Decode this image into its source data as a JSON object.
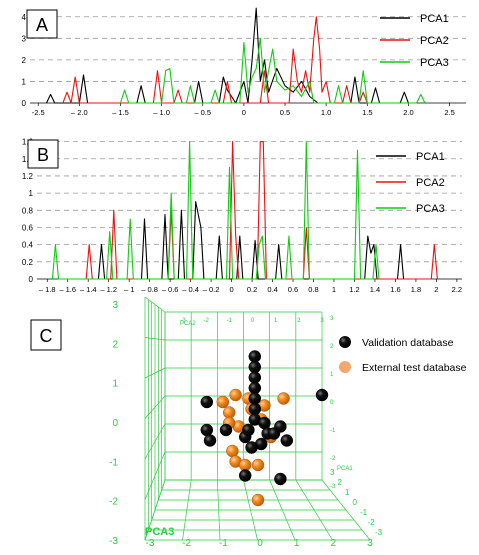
{
  "panel_labels": {
    "a": "A",
    "b": "B",
    "c": "C"
  },
  "legend_ab": [
    {
      "name": "PCA1",
      "color": "#000000"
    },
    {
      "name": "PCA2",
      "color": "#ee1111"
    },
    {
      "name": "PCA3",
      "color": "#11cc11"
    }
  ],
  "legend_c": [
    {
      "name": "Validation database",
      "color": "#000000"
    },
    {
      "name": "External test database",
      "color": "#f4a870"
    }
  ],
  "chart_data": [
    {
      "type": "line",
      "panel": "A",
      "ylim": [
        0,
        4.5
      ],
      "xlim": [
        -2.6,
        2.7
      ],
      "y_ticks": [
        0,
        1,
        2,
        3,
        4
      ],
      "x_ticks": [
        -2.5,
        -2.0,
        -1.5,
        -1.0,
        -0.5,
        0,
        0.5,
        1.0,
        1.5,
        2.0,
        2.5
      ],
      "x_tick_labels": [
        "-2.5",
        "– 2.0",
        "– 1.5",
        "– 1.0",
        "– 0.5",
        "0",
        "0.5",
        "1.0",
        "1.5",
        "2.0",
        "2.5"
      ],
      "grid": "y-dashed",
      "legend": "top-right",
      "series": [
        {
          "name": "PCA1",
          "color": "#000000",
          "points": [
            [
              -2.4,
              0
            ],
            [
              -2.35,
              0.4
            ],
            [
              -2.3,
              0
            ],
            [
              -2.0,
              0
            ],
            [
              -1.95,
              1.3
            ],
            [
              -1.9,
              0
            ],
            [
              -1.3,
              0
            ],
            [
              -1.25,
              0.8
            ],
            [
              -1.2,
              0
            ],
            [
              -0.6,
              0
            ],
            [
              -0.55,
              1.0
            ],
            [
              -0.5,
              0
            ],
            [
              -0.3,
              0
            ],
            [
              -0.25,
              1.2
            ],
            [
              -0.2,
              0.6
            ],
            [
              -0.1,
              0
            ],
            [
              0.0,
              1.0
            ],
            [
              0.05,
              0
            ],
            [
              0.1,
              2.0
            ],
            [
              0.15,
              4.4
            ],
            [
              0.2,
              1.0
            ],
            [
              0.25,
              2.0
            ],
            [
              0.3,
              0.5
            ],
            [
              0.4,
              1.6
            ],
            [
              0.5,
              0.8
            ],
            [
              0.6,
              0.5
            ],
            [
              0.7,
              1.0
            ],
            [
              0.8,
              0.3
            ],
            [
              0.9,
              0
            ],
            [
              1.3,
              0
            ],
            [
              1.35,
              1.2
            ],
            [
              1.4,
              0
            ],
            [
              1.55,
              0
            ],
            [
              1.6,
              0.7
            ],
            [
              1.65,
              0
            ],
            [
              1.9,
              0
            ],
            [
              1.95,
              0.5
            ],
            [
              2.0,
              0
            ]
          ]
        },
        {
          "name": "PCA2",
          "color": "#ee1111",
          "points": [
            [
              -2.2,
              0
            ],
            [
              -2.15,
              0.5
            ],
            [
              -2.1,
              0
            ],
            [
              -2.05,
              1.2
            ],
            [
              -2.0,
              0
            ],
            [
              -1.1,
              0
            ],
            [
              -1.05,
              1.5
            ],
            [
              -1.0,
              0
            ],
            [
              -0.85,
              0
            ],
            [
              -0.8,
              0.6
            ],
            [
              -0.75,
              0
            ],
            [
              -0.25,
              0
            ],
            [
              -0.2,
              1.0
            ],
            [
              -0.15,
              0
            ],
            [
              0.2,
              0
            ],
            [
              0.25,
              1.5
            ],
            [
              0.3,
              0
            ],
            [
              0.55,
              0
            ],
            [
              0.6,
              2.5
            ],
            [
              0.65,
              1.0
            ],
            [
              0.7,
              0.5
            ],
            [
              0.75,
              1.5
            ],
            [
              0.8,
              0.5
            ],
            [
              0.85,
              3.0
            ],
            [
              0.88,
              4.0
            ],
            [
              0.92,
              2.5
            ],
            [
              0.95,
              0.5
            ],
            [
              1.0,
              1.0
            ],
            [
              1.05,
              0
            ],
            [
              1.2,
              0
            ],
            [
              1.25,
              0.8
            ],
            [
              1.3,
              0
            ],
            [
              1.4,
              0
            ],
            [
              1.45,
              0.5
            ],
            [
              1.5,
              0
            ]
          ]
        },
        {
          "name": "PCA3",
          "color": "#11cc11",
          "points": [
            [
              -1.5,
              0
            ],
            [
              -1.45,
              0.6
            ],
            [
              -1.4,
              0
            ],
            [
              -1.0,
              0
            ],
            [
              -0.95,
              1.5
            ],
            [
              -0.9,
              1.6
            ],
            [
              -0.85,
              0
            ],
            [
              -0.7,
              0
            ],
            [
              -0.65,
              0.8
            ],
            [
              -0.6,
              0
            ],
            [
              -0.4,
              0
            ],
            [
              -0.35,
              0.6
            ],
            [
              -0.3,
              0
            ],
            [
              -0.05,
              0
            ],
            [
              0.0,
              2.8
            ],
            [
              0.05,
              0.5
            ],
            [
              0.1,
              1.2
            ],
            [
              0.15,
              1.6
            ],
            [
              0.2,
              3.0
            ],
            [
              0.25,
              0.5
            ],
            [
              0.35,
              2.5
            ],
            [
              0.4,
              1.0
            ],
            [
              0.5,
              0.6
            ],
            [
              0.6,
              0.8
            ],
            [
              0.7,
              0.3
            ],
            [
              0.8,
              1.0
            ],
            [
              0.85,
              0
            ],
            [
              1.1,
              0
            ],
            [
              1.15,
              0.8
            ],
            [
              1.2,
              0
            ],
            [
              1.4,
              0
            ],
            [
              1.45,
              1.5
            ],
            [
              1.5,
              0
            ],
            [
              2.1,
              0
            ],
            [
              2.15,
              0.4
            ],
            [
              2.2,
              0
            ]
          ]
        }
      ]
    },
    {
      "type": "line",
      "panel": "B",
      "ylim": [
        0,
        1.7
      ],
      "xlim": [
        -1.9,
        2.25
      ],
      "y_ticks": [
        0,
        0.2,
        0.4,
        0.6,
        0.8,
        1.0,
        1.2,
        1.4,
        1.6
      ],
      "y_tick_labels": [
        "0",
        "0.2",
        "0.4",
        "0.6",
        "0.8",
        "1",
        "1.2",
        "1.4",
        "1.6"
      ],
      "x_ticks": [
        -1.8,
        -1.6,
        -1.4,
        -1.2,
        -1.0,
        -0.8,
        -0.6,
        -0.4,
        -0.2,
        0,
        0.2,
        0.4,
        0.6,
        0.8,
        1.0,
        1.2,
        1.4,
        1.6,
        1.8,
        2.0,
        2.2
      ],
      "x_tick_labels": [
        "– 1.8",
        "– 1.6",
        "– 1.4",
        "– 1.2",
        "– 1",
        "– 0.8",
        "– 0.6",
        "– 0.4",
        "– 0.2",
        "0",
        "0.2",
        "0.4",
        "0.6",
        "0.8",
        "1",
        "1.2",
        "1.4",
        "1.6",
        "1.8",
        "2",
        "2.2"
      ],
      "grid": "y-dashed",
      "legend": "top-right",
      "series": [
        {
          "name": "PCA1",
          "color": "#000000",
          "points": [
            [
              -1.3,
              0
            ],
            [
              -1.27,
              0.4
            ],
            [
              -1.24,
              0
            ],
            [
              -0.88,
              0
            ],
            [
              -0.85,
              0.7
            ],
            [
              -0.82,
              0
            ],
            [
              -0.68,
              0
            ],
            [
              -0.65,
              0.75
            ],
            [
              -0.62,
              0
            ],
            [
              -0.52,
              0
            ],
            [
              -0.49,
              0.8
            ],
            [
              -0.46,
              0
            ],
            [
              -0.38,
              0
            ],
            [
              -0.35,
              0.9
            ],
            [
              -0.3,
              0.6
            ],
            [
              -0.27,
              0
            ],
            [
              -0.15,
              0
            ],
            [
              -0.12,
              0.5
            ],
            [
              -0.09,
              0
            ],
            [
              0.05,
              0
            ],
            [
              0.08,
              0.5
            ],
            [
              0.11,
              0
            ],
            [
              0.2,
              0
            ],
            [
              0.23,
              0.45
            ],
            [
              0.26,
              0
            ],
            [
              0.43,
              0
            ],
            [
              0.46,
              0.4
            ],
            [
              0.49,
              0
            ],
            [
              1.3,
              0
            ],
            [
              1.33,
              0.5
            ],
            [
              1.36,
              0.3
            ],
            [
              1.39,
              0.4
            ],
            [
              1.42,
              0
            ],
            [
              1.62,
              0
            ],
            [
              1.65,
              0.4
            ],
            [
              1.68,
              0
            ]
          ]
        },
        {
          "name": "PCA2",
          "color": "#ee1111",
          "points": [
            [
              -1.42,
              0
            ],
            [
              -1.39,
              0.4
            ],
            [
              -1.36,
              0
            ],
            [
              -1.18,
              0
            ],
            [
              -1.15,
              0.8
            ],
            [
              -1.12,
              0
            ],
            [
              -0.62,
              0
            ],
            [
              -0.59,
              0.8
            ],
            [
              -0.56,
              0
            ],
            [
              -0.02,
              0
            ],
            [
              0.01,
              1.6
            ],
            [
              0.04,
              0.5
            ],
            [
              0.07,
              0
            ],
            [
              0.25,
              0
            ],
            [
              0.28,
              1.6
            ],
            [
              0.31,
              1.6
            ],
            [
              0.34,
              0
            ],
            [
              0.7,
              0
            ],
            [
              0.73,
              0.6
            ],
            [
              0.76,
              0
            ],
            [
              1.95,
              0
            ],
            [
              1.98,
              0.4
            ],
            [
              2.01,
              0
            ]
          ]
        },
        {
          "name": "PCA3",
          "color": "#11cc11",
          "points": [
            [
              -1.75,
              0
            ],
            [
              -1.72,
              0.4
            ],
            [
              -1.69,
              0
            ],
            [
              -1.22,
              0
            ],
            [
              -1.19,
              0.55
            ],
            [
              -1.16,
              0
            ],
            [
              -1.02,
              0
            ],
            [
              -0.99,
              0.7
            ],
            [
              -0.96,
              0
            ],
            [
              -0.62,
              0
            ],
            [
              -0.59,
              1.0
            ],
            [
              -0.56,
              0
            ],
            [
              -0.44,
              0
            ],
            [
              -0.41,
              1.6
            ],
            [
              -0.38,
              0
            ],
            [
              -0.05,
              0
            ],
            [
              -0.02,
              1.3
            ],
            [
              0.01,
              0
            ],
            [
              0.24,
              0
            ],
            [
              0.27,
              0.4
            ],
            [
              0.3,
              0.5
            ],
            [
              0.33,
              0
            ],
            [
              0.53,
              0
            ],
            [
              0.56,
              0.5
            ],
            [
              0.59,
              0
            ],
            [
              0.7,
              0
            ],
            [
              0.73,
              1.6
            ],
            [
              0.76,
              0
            ],
            [
              1.2,
              0
            ],
            [
              1.23,
              1.5
            ],
            [
              1.26,
              0
            ],
            [
              1.38,
              0
            ],
            [
              1.41,
              0.4
            ],
            [
              1.44,
              0
            ]
          ]
        }
      ]
    },
    {
      "type": "scatter",
      "panel": "C",
      "projection": "3d",
      "axis_names": {
        "x": "PCA1",
        "y": "PCA2",
        "z": "PCA3"
      },
      "axis_range": [
        -3,
        3
      ],
      "ticks": [
        -3,
        -2,
        -1,
        0,
        1,
        2,
        3
      ],
      "tick_labels": [
        "-3",
        "-2",
        "-1",
        "0",
        "1",
        "2",
        "3"
      ],
      "legend": "top-right",
      "series": [
        {
          "name": "Validation database",
          "color": "#000000",
          "points": [
            [
              -0.1,
              2.1
            ],
            [
              -0.1,
              1.8
            ],
            [
              -0.1,
              1.5
            ],
            [
              -0.1,
              1.2
            ],
            [
              -0.1,
              0.9
            ],
            [
              -0.1,
              0.6
            ],
            [
              -0.1,
              0.3
            ],
            [
              0.2,
              0.2
            ],
            [
              0.3,
              -0.1
            ],
            [
              0.1,
              -0.4
            ],
            [
              -0.2,
              -0.5
            ],
            [
              -0.4,
              -0.2
            ],
            [
              0.5,
              -0.1
            ],
            [
              0.7,
              0.1
            ],
            [
              0.9,
              -0.3
            ],
            [
              -0.3,
              0.0
            ],
            [
              -1.6,
              0.8
            ],
            [
              -1.6,
              0.0
            ],
            [
              -1.5,
              -0.3
            ],
            [
              -1.0,
              0.0
            ],
            [
              2.0,
              1.0
            ],
            [
              -0.4,
              -1.3
            ],
            [
              0.7,
              -1.4
            ]
          ]
        },
        {
          "name": "External test database",
          "color": "#f4a870",
          "points": [
            [
              -1.1,
              0.8
            ],
            [
              -0.9,
              0.5
            ],
            [
              -0.7,
              1.0
            ],
            [
              -0.3,
              0.9
            ],
            [
              -0.2,
              0.6
            ],
            [
              0.2,
              0.7
            ],
            [
              0.8,
              0.9
            ],
            [
              0.1,
              0.3
            ],
            [
              -0.6,
              0.1
            ],
            [
              0.4,
              -0.2
            ],
            [
              -0.2,
              -0.5
            ],
            [
              -0.8,
              -0.6
            ],
            [
              -0.7,
              -0.9
            ],
            [
              -0.4,
              -1.0
            ],
            [
              0.0,
              -1.0
            ],
            [
              0.0,
              -2.0
            ],
            [
              -0.9,
              0.2
            ]
          ]
        }
      ]
    }
  ]
}
